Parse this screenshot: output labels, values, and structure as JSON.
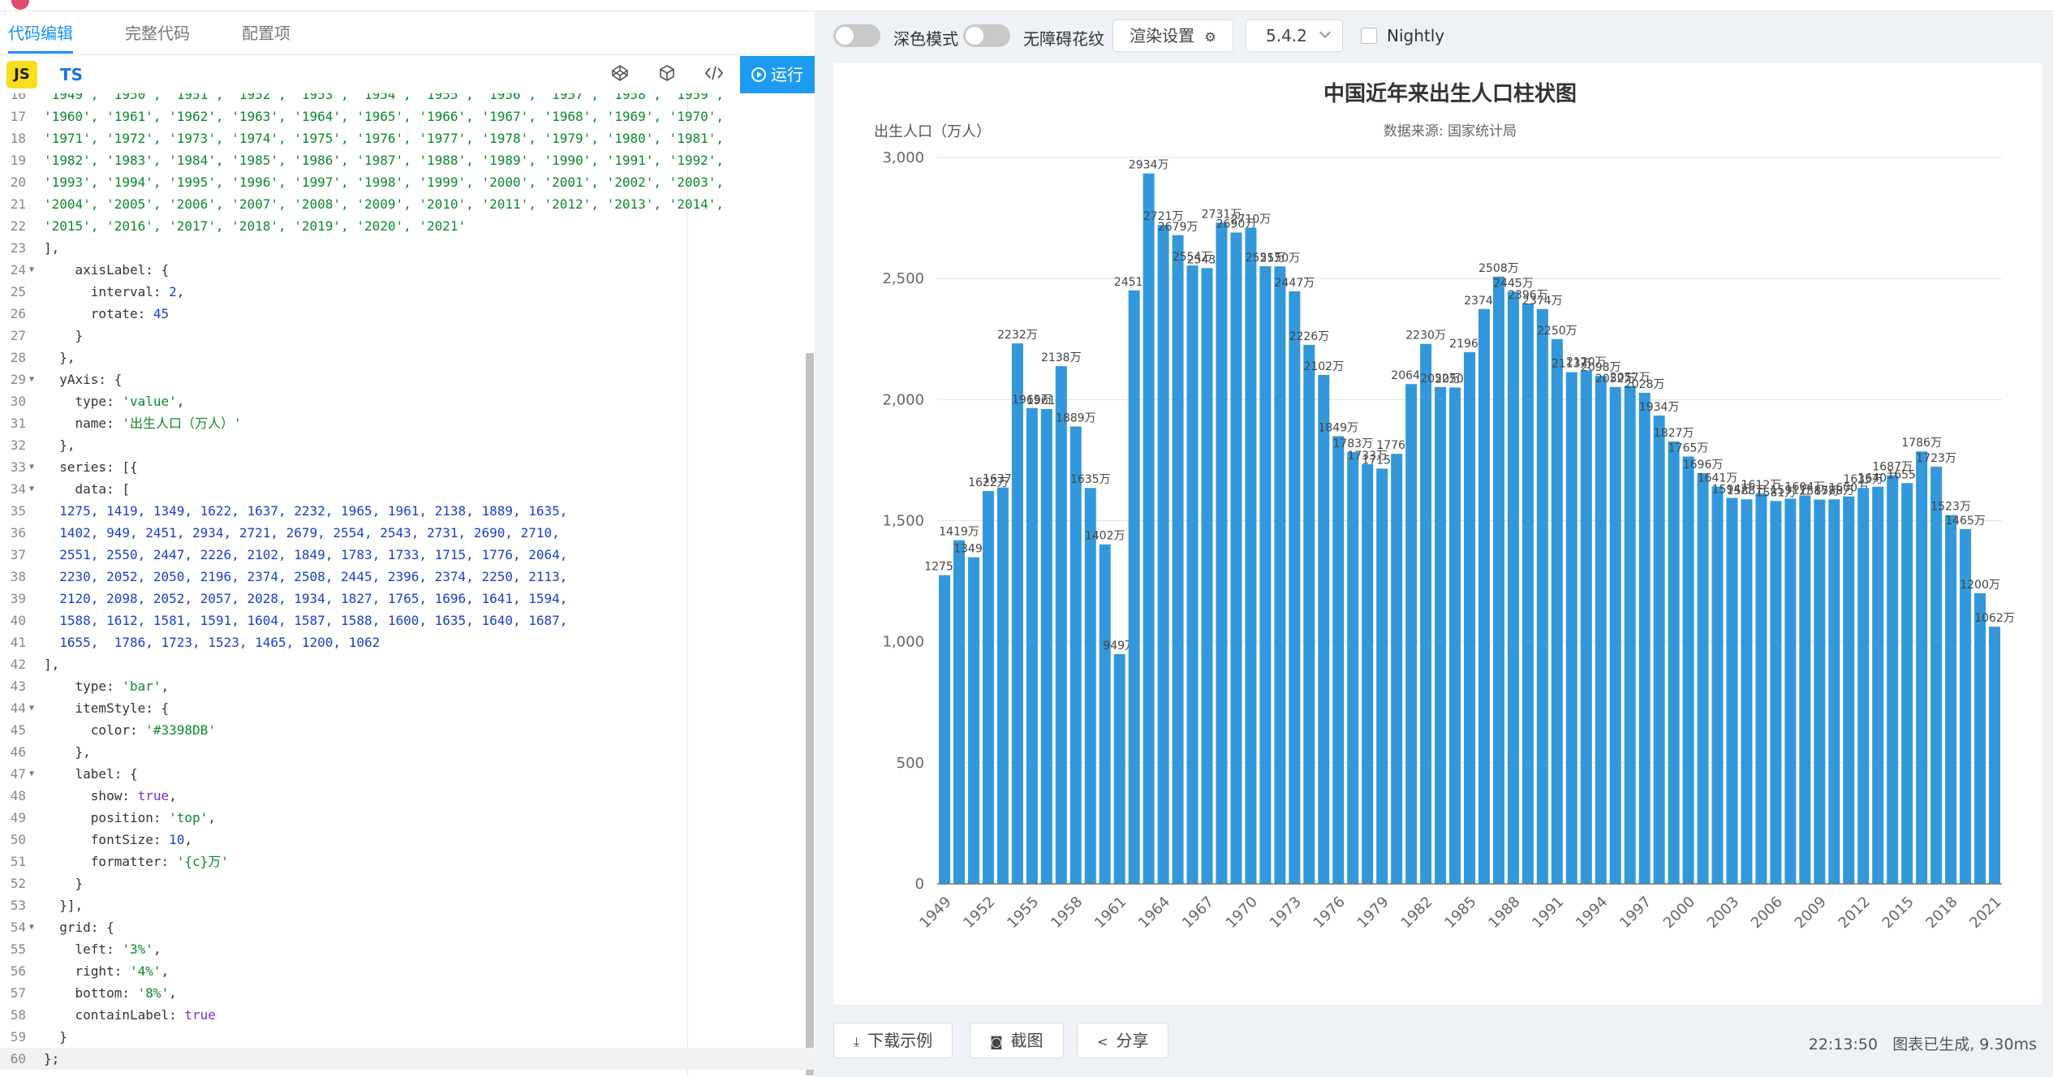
{
  "editor": {
    "tabs": [
      "代码编辑",
      "完整代码",
      "配置项"
    ],
    "lang_js": "JS",
    "lang_ts": "TS",
    "run_label": "运行",
    "lines": [
      {
        "n": "16",
        "fold": false,
        "segs": [
          [
            "s",
            "'1949', '1950', '1951', '1952', '1953', '1954', '1955', '1956', '1957', '1958', '1959',"
          ]
        ]
      },
      {
        "n": "17",
        "fold": false,
        "segs": [
          [
            "s",
            "'1960', '1961', '1962', '1963', '1964', '1965', '1966', '1967', '1968', '1969', '1970',"
          ]
        ]
      },
      {
        "n": "18",
        "fold": false,
        "segs": [
          [
            "s",
            "'1971', '1972', '1973', '1974', '1975', '1976', '1977', '1978', '1979', '1980', '1981',"
          ]
        ]
      },
      {
        "n": "19",
        "fold": false,
        "segs": [
          [
            "s",
            "'1982', '1983', '1984', '1985', '1986', '1987', '1988', '1989', '1990', '1991', '1992',"
          ]
        ]
      },
      {
        "n": "20",
        "fold": false,
        "segs": [
          [
            "s",
            "'1993', '1994', '1995', '1996', '1997', '1998', '1999', '2000', '2001', '2002', '2003',"
          ]
        ]
      },
      {
        "n": "21",
        "fold": false,
        "segs": [
          [
            "s",
            "'2004', '2005', '2006', '2007', '2008', '2009', '2010', '2011', '2012', '2013', '2014',"
          ]
        ]
      },
      {
        "n": "22",
        "fold": false,
        "segs": [
          [
            "s",
            "'2015', '2016', '2017', '2018', '2019', '2020', '2021'"
          ]
        ]
      },
      {
        "n": "23",
        "fold": false,
        "segs": [
          [
            "p",
            "],"
          ]
        ]
      },
      {
        "n": "24",
        "fold": true,
        "segs": [
          [
            "p",
            "    axisLabel: {"
          ]
        ]
      },
      {
        "n": "25",
        "fold": false,
        "segs": [
          [
            "p",
            "      interval: "
          ],
          [
            "n",
            "2"
          ],
          [
            "p",
            ","
          ]
        ]
      },
      {
        "n": "26",
        "fold": false,
        "segs": [
          [
            "p",
            "      rotate: "
          ],
          [
            "n",
            "45"
          ]
        ]
      },
      {
        "n": "27",
        "fold": false,
        "segs": [
          [
            "p",
            "    }"
          ]
        ]
      },
      {
        "n": "28",
        "fold": false,
        "segs": [
          [
            "p",
            "  },"
          ]
        ]
      },
      {
        "n": "29",
        "fold": true,
        "segs": [
          [
            "p",
            "  yAxis: {"
          ]
        ]
      },
      {
        "n": "30",
        "fold": false,
        "segs": [
          [
            "p",
            "    type: "
          ],
          [
            "s",
            "'value'"
          ],
          [
            "p",
            ","
          ]
        ]
      },
      {
        "n": "31",
        "fold": false,
        "segs": [
          [
            "p",
            "    name: "
          ],
          [
            "s",
            "'出生人口（万人）'"
          ]
        ]
      },
      {
        "n": "32",
        "fold": false,
        "segs": [
          [
            "p",
            "  },"
          ]
        ]
      },
      {
        "n": "33",
        "fold": true,
        "segs": [
          [
            "p",
            "  series: [{"
          ]
        ]
      },
      {
        "n": "34",
        "fold": true,
        "segs": [
          [
            "p",
            "    data: ["
          ]
        ]
      },
      {
        "n": "35",
        "fold": false,
        "segs": [
          [
            "n",
            "  1275, 1419, 1349, 1622, 1637, 2232, 1965, 1961, 2138, 1889, 1635,"
          ]
        ]
      },
      {
        "n": "36",
        "fold": false,
        "segs": [
          [
            "n",
            "  1402, 949, 2451, 2934, 2721, 2679, 2554, 2543, 2731, 2690, 2710,"
          ]
        ]
      },
      {
        "n": "37",
        "fold": false,
        "segs": [
          [
            "n",
            "  2551, 2550, 2447, 2226, 2102, 1849, 1783, 1733, 1715, 1776, 2064,"
          ]
        ]
      },
      {
        "n": "38",
        "fold": false,
        "segs": [
          [
            "n",
            "  2230, 2052, 2050, 2196, 2374, 2508, 2445, 2396, 2374, 2250, 2113,"
          ]
        ]
      },
      {
        "n": "39",
        "fold": false,
        "segs": [
          [
            "n",
            "  2120, 2098, 2052, 2057, 2028, 1934, 1827, 1765, 1696, 1641, 1594,"
          ]
        ]
      },
      {
        "n": "40",
        "fold": false,
        "segs": [
          [
            "n",
            "  1588, 1612, 1581, 1591, 1604, 1587, 1588, 1600, 1635, 1640, 1687,"
          ]
        ]
      },
      {
        "n": "41",
        "fold": false,
        "segs": [
          [
            "n",
            "  1655,  1786, 1723, 1523, 1465, 1200, 1062"
          ]
        ]
      },
      {
        "n": "42",
        "fold": false,
        "segs": [
          [
            "p",
            "],"
          ]
        ]
      },
      {
        "n": "43",
        "fold": false,
        "segs": [
          [
            "p",
            "    type: "
          ],
          [
            "s",
            "'bar'"
          ],
          [
            "p",
            ","
          ]
        ]
      },
      {
        "n": "44",
        "fold": true,
        "segs": [
          [
            "p",
            "    itemStyle: {"
          ]
        ]
      },
      {
        "n": "45",
        "fold": false,
        "segs": [
          [
            "p",
            "      color: "
          ],
          [
            "s",
            "'#3398DB'"
          ]
        ]
      },
      {
        "n": "46",
        "fold": false,
        "segs": [
          [
            "p",
            "    },"
          ]
        ]
      },
      {
        "n": "47",
        "fold": true,
        "segs": [
          [
            "p",
            "    label: {"
          ]
        ]
      },
      {
        "n": "48",
        "fold": false,
        "segs": [
          [
            "p",
            "      show: "
          ],
          [
            "k",
            "true"
          ],
          [
            "p",
            ","
          ]
        ]
      },
      {
        "n": "49",
        "fold": false,
        "segs": [
          [
            "p",
            "      position: "
          ],
          [
            "s",
            "'top'"
          ],
          [
            "p",
            ","
          ]
        ]
      },
      {
        "n": "50",
        "fold": false,
        "segs": [
          [
            "p",
            "      fontSize: "
          ],
          [
            "n",
            "10"
          ],
          [
            "p",
            ","
          ]
        ]
      },
      {
        "n": "51",
        "fold": false,
        "segs": [
          [
            "p",
            "      formatter: "
          ],
          [
            "s",
            "'{c}万'"
          ]
        ]
      },
      {
        "n": "52",
        "fold": false,
        "segs": [
          [
            "p",
            "    }"
          ]
        ]
      },
      {
        "n": "53",
        "fold": false,
        "segs": [
          [
            "p",
            "  }],"
          ]
        ]
      },
      {
        "n": "54",
        "fold": true,
        "segs": [
          [
            "p",
            "  grid: {"
          ]
        ]
      },
      {
        "n": "55",
        "fold": false,
        "segs": [
          [
            "p",
            "    left: "
          ],
          [
            "s",
            "'3%'"
          ],
          [
            "p",
            ","
          ]
        ]
      },
      {
        "n": "56",
        "fold": false,
        "segs": [
          [
            "p",
            "    right: "
          ],
          [
            "s",
            "'4%'"
          ],
          [
            "p",
            ","
          ]
        ]
      },
      {
        "n": "57",
        "fold": false,
        "segs": [
          [
            "p",
            "    bottom: "
          ],
          [
            "s",
            "'8%'"
          ],
          [
            "p",
            ","
          ]
        ]
      },
      {
        "n": "58",
        "fold": false,
        "segs": [
          [
            "p",
            "    containLabel: "
          ],
          [
            "k",
            "true"
          ]
        ]
      },
      {
        "n": "59",
        "fold": false,
        "segs": [
          [
            "p",
            "  }"
          ]
        ]
      },
      {
        "n": "60",
        "fold": false,
        "segs": [
          [
            "p",
            "};"
          ]
        ]
      }
    ]
  },
  "preview": {
    "dark_mode_label": "深色模式",
    "a11y_label": "无障碍花纹",
    "render_settings_label": "渲染设置",
    "version": "5.4.2",
    "nightly_label": "Nightly",
    "download_label": "下载示例",
    "screenshot_label": "截图",
    "share_label": "分享",
    "time": "22:13:50",
    "status": "图表已生成, 9.30ms"
  },
  "colors": {
    "bar": "#3398DB",
    "accent": "#1890ff",
    "run": "#1d9bf0"
  },
  "chart_data": {
    "type": "bar",
    "title": "中国近年来出生人口柱状图",
    "subtitle": "数据来源: 国家统计局",
    "ylabel": "出生人口（万人）",
    "ylim": [
      0,
      3000
    ],
    "yticks": [
      "0",
      "500",
      "1,000",
      "1,500",
      "2,000",
      "2,500",
      "3,000"
    ],
    "label_suffix": "万",
    "categories": [
      "1949",
      "1950",
      "1951",
      "1952",
      "1953",
      "1954",
      "1955",
      "1956",
      "1957",
      "1958",
      "1959",
      "1960",
      "1961",
      "1962",
      "1963",
      "1964",
      "1965",
      "1966",
      "1967",
      "1968",
      "1969",
      "1970",
      "1971",
      "1972",
      "1973",
      "1974",
      "1975",
      "1976",
      "1977",
      "1978",
      "1979",
      "1980",
      "1981",
      "1982",
      "1983",
      "1984",
      "1985",
      "1986",
      "1987",
      "1988",
      "1989",
      "1990",
      "1991",
      "1992",
      "1993",
      "1994",
      "1995",
      "1996",
      "1997",
      "1998",
      "1999",
      "2000",
      "2001",
      "2002",
      "2003",
      "2004",
      "2005",
      "2006",
      "2007",
      "2008",
      "2009",
      "2010",
      "2011",
      "2012",
      "2013",
      "2014",
      "2015",
      "2016",
      "2017",
      "2018",
      "2019",
      "2020",
      "2021"
    ],
    "values": [
      1275,
      1419,
      1349,
      1622,
      1637,
      2232,
      1965,
      1961,
      2138,
      1889,
      1635,
      1402,
      949,
      2451,
      2934,
      2721,
      2679,
      2554,
      2543,
      2731,
      2690,
      2710,
      2551,
      2550,
      2447,
      2226,
      2102,
      1849,
      1783,
      1733,
      1715,
      1776,
      2064,
      2230,
      2052,
      2050,
      2196,
      2374,
      2508,
      2445,
      2396,
      2374,
      2250,
      2113,
      2120,
      2098,
      2052,
      2057,
      2028,
      1934,
      1827,
      1765,
      1696,
      1641,
      1594,
      1588,
      1612,
      1581,
      1591,
      1604,
      1587,
      1588,
      1600,
      1635,
      1640,
      1687,
      1655,
      1786,
      1723,
      1523,
      1465,
      1200,
      1062
    ],
    "label_interval": 3,
    "grid": false,
    "legend": "none"
  }
}
